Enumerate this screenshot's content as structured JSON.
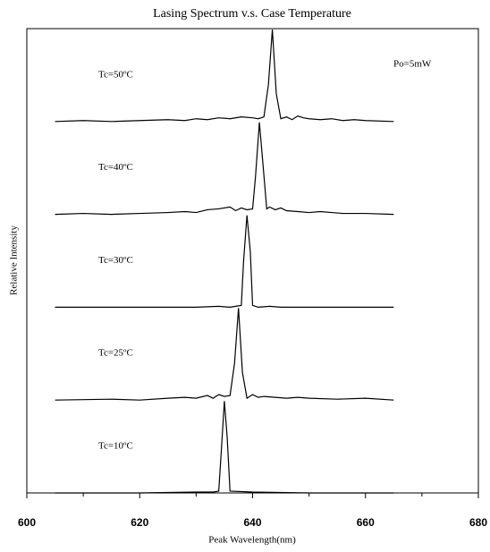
{
  "chart_data": {
    "type": "line",
    "title": "Lasing Spectrum v.s. Case Temperature",
    "x_label": "Peak Wavelength(nm)",
    "y_label": "Relative Intensity",
    "annotation": "Po=5mW",
    "xlim": [
      600,
      680
    ],
    "xticks": [
      600,
      620,
      640,
      660,
      680
    ],
    "xminorticks": [
      610,
      630,
      650,
      670
    ],
    "ylim": [
      0,
      1
    ],
    "color": "#000000",
    "series": [
      {
        "name": "Tc=50ºC",
        "x": [
          605,
          610,
          615,
          620,
          625,
          628,
          630,
          632,
          634,
          636,
          638,
          640,
          641,
          642,
          642.8,
          643.5,
          644.2,
          645,
          646,
          647,
          648,
          649,
          650,
          652,
          654,
          656,
          658,
          660,
          665
        ],
        "values": [
          0,
          0.01,
          0,
          0.01,
          0.02,
          0.01,
          0.03,
          0.02,
          0.04,
          0.03,
          0.05,
          0.04,
          0.03,
          0.05,
          0.4,
          1,
          0.3,
          0.03,
          0.05,
          0.02,
          0.06,
          0.04,
          0.03,
          0.02,
          0.03,
          0.01,
          0.02,
          0.01,
          0
        ]
      },
      {
        "name": "Tc=40ºC",
        "x": [
          605,
          610,
          615,
          620,
          625,
          628,
          630,
          632,
          634,
          636,
          637,
          638,
          639,
          640,
          640.5,
          641.2,
          641.9,
          642.5,
          643,
          644,
          645,
          646,
          648,
          650,
          652,
          654,
          656,
          660,
          665
        ],
        "values": [
          0,
          0.01,
          0,
          0.01,
          0.02,
          0.03,
          0.02,
          0.05,
          0.06,
          0.08,
          0.04,
          0.07,
          0.05,
          0.06,
          0.4,
          1,
          0.5,
          0.06,
          0.08,
          0.05,
          0.07,
          0.04,
          0.03,
          0.02,
          0.03,
          0.02,
          0.01,
          0.01,
          0
        ]
      },
      {
        "name": "Tc=30ºC",
        "x": [
          605,
          620,
          630,
          634,
          636,
          637,
          638,
          638.4,
          639,
          639.6,
          640,
          641,
          643,
          645,
          650,
          665
        ],
        "values": [
          0,
          0,
          0,
          0.01,
          0,
          0.01,
          0.02,
          0.5,
          1,
          0.6,
          0.02,
          0,
          0.01,
          0,
          0,
          0
        ]
      },
      {
        "name": "Tc=25ºC",
        "x": [
          605,
          615,
          620,
          625,
          628,
          630,
          632,
          633,
          634,
          635,
          636,
          636.8,
          637.5,
          638.2,
          639,
          640,
          641,
          642,
          644,
          646,
          648,
          650,
          655,
          660,
          665
        ],
        "values": [
          0,
          0.01,
          0,
          0.02,
          0.03,
          0.02,
          0.05,
          0.02,
          0.06,
          0.04,
          0.05,
          0.4,
          1,
          0.3,
          0.02,
          0.06,
          0.03,
          0.04,
          0.03,
          0.02,
          0.03,
          0.02,
          0.01,
          0.02,
          0
        ]
      },
      {
        "name": "Tc=10ºC",
        "x": [
          605,
          620,
          630,
          633,
          634,
          634.5,
          635,
          635.5,
          636,
          640,
          650,
          665
        ],
        "values": [
          0,
          0,
          0.01,
          0.01,
          0.02,
          0.5,
          1,
          0.6,
          0.02,
          0.01,
          0,
          0
        ]
      }
    ]
  }
}
